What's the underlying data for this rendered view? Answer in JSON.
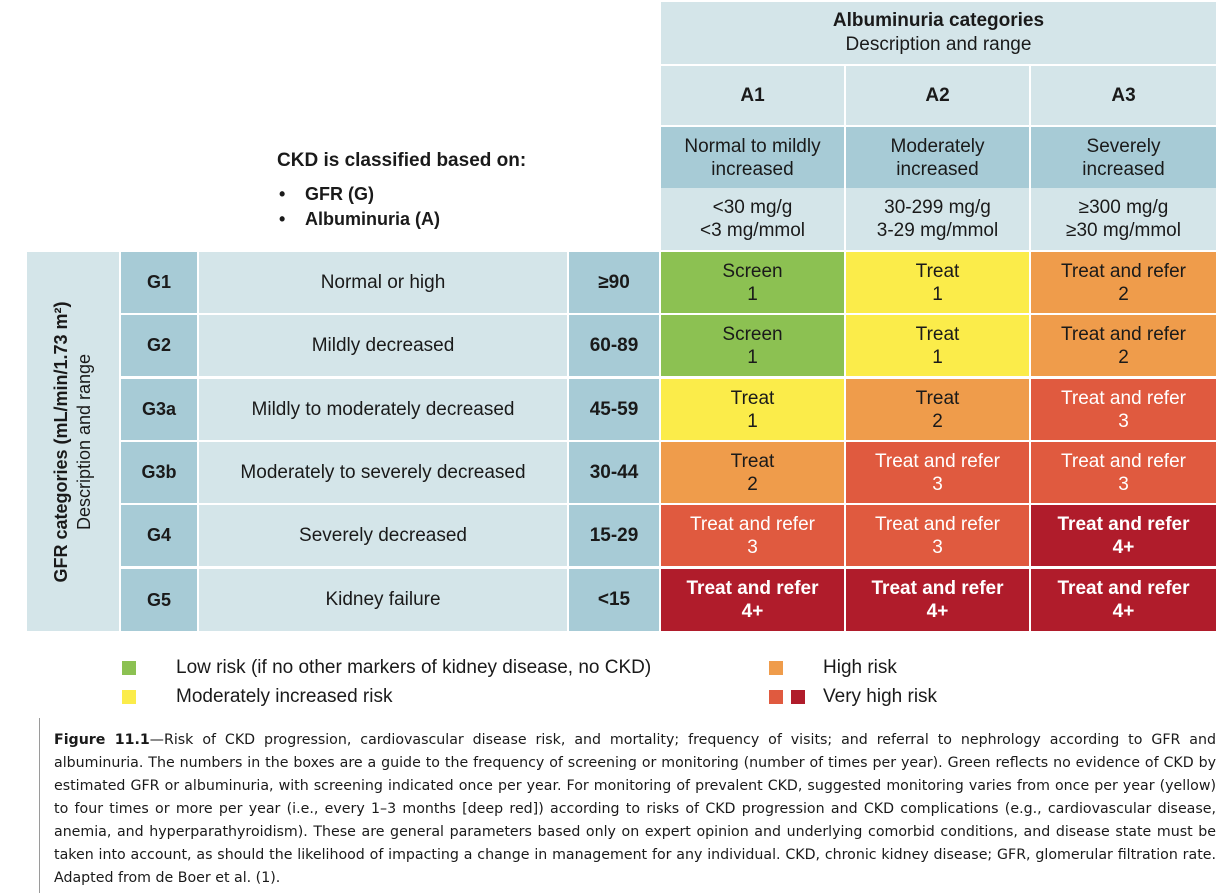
{
  "albuminuria": {
    "title": "Albuminuria categories",
    "subtitle": "Description and range",
    "columns": [
      {
        "code": "A1",
        "desc_l1": "Normal to mildly",
        "desc_l2": "increased",
        "range_l1": "<30 mg/g",
        "range_l2": "<3 mg/mmol"
      },
      {
        "code": "A2",
        "desc_l1": "Moderately",
        "desc_l2": "increased",
        "range_l1": "30-299 mg/g",
        "range_l2": "3-29 mg/mmol"
      },
      {
        "code": "A3",
        "desc_l1": "Severely",
        "desc_l2": "increased",
        "range_l1": "≥300 mg/g",
        "range_l2": "≥30 mg/mmol"
      }
    ]
  },
  "criteria": {
    "title": "CKD is classified based on:",
    "items": [
      "GFR (G)",
      "Albuminuria (A)"
    ]
  },
  "gfr": {
    "title": "GFR categories (mL/min/1.73 m²)",
    "subtitle": "Description and range",
    "rows": [
      {
        "code": "G1",
        "desc": "Normal or high",
        "range": "≥90"
      },
      {
        "code": "G2",
        "desc": "Mildly decreased",
        "range": "60-89"
      },
      {
        "code": "G3a",
        "desc": "Mildly to moderately decreased",
        "range": "45-59"
      },
      {
        "code": "G3b",
        "desc": "Moderately to severely decreased",
        "range": "30-44"
      },
      {
        "code": "G4",
        "desc": "Severely decreased",
        "range": "15-29"
      },
      {
        "code": "G5",
        "desc": "Kidney failure",
        "range": "<15"
      }
    ]
  },
  "colors": {
    "green": "#8cc152",
    "yellow": "#fbec4a",
    "orange": "#ef9c4b",
    "red": "#e05a3f",
    "deep_red": "#b01c2b",
    "light_blue": "#d4e5e9",
    "mid_blue": "#a7cbd6"
  },
  "grid": [
    [
      {
        "action": "Screen",
        "freq": "1",
        "color": "green"
      },
      {
        "action": "Treat",
        "freq": "1",
        "color": "yellow"
      },
      {
        "action": "Treat and refer",
        "freq": "2",
        "color": "orange"
      }
    ],
    [
      {
        "action": "Screen",
        "freq": "1",
        "color": "green"
      },
      {
        "action": "Treat",
        "freq": "1",
        "color": "yellow"
      },
      {
        "action": "Treat and refer",
        "freq": "2",
        "color": "orange"
      }
    ],
    [
      {
        "action": "Treat",
        "freq": "1",
        "color": "yellow"
      },
      {
        "action": "Treat",
        "freq": "2",
        "color": "orange"
      },
      {
        "action": "Treat and refer",
        "freq": "3",
        "color": "red"
      }
    ],
    [
      {
        "action": "Treat",
        "freq": "2",
        "color": "orange"
      },
      {
        "action": "Treat and refer",
        "freq": "3",
        "color": "red"
      },
      {
        "action": "Treat and refer",
        "freq": "3",
        "color": "red"
      }
    ],
    [
      {
        "action": "Treat and refer",
        "freq": "3",
        "color": "red"
      },
      {
        "action": "Treat and refer",
        "freq": "3",
        "color": "red"
      },
      {
        "action": "Treat and refer",
        "freq": "4+",
        "color": "deep_red"
      }
    ],
    [
      {
        "action": "Treat and refer",
        "freq": "4+",
        "color": "deep_red"
      },
      {
        "action": "Treat and refer",
        "freq": "4+",
        "color": "deep_red"
      },
      {
        "action": "Treat and refer",
        "freq": "4+",
        "color": "deep_red"
      }
    ]
  ],
  "legend": {
    "low": "Low risk (if no other markers of kidney disease, no CKD)",
    "moderate": "Moderately increased risk",
    "high": "High risk",
    "very_high": "Very high risk"
  },
  "caption": {
    "label": "Figure 11.1",
    "text": "—Risk of CKD progression, cardiovascular disease risk, and mortality; frequency of visits; and referral to nephrology according to GFR and albuminuria. The numbers in the boxes are a guide to the frequency of screening or monitoring (number of times per year). Green reflects no evidence of CKD by estimated GFR or albuminuria, with screening indicated once per year. For monitoring of prevalent CKD, suggested monitoring varies from once per year (yellow) to four times or more per year (i.e., every 1–3 months [deep red]) according to risks of CKD progression and CKD complications (e.g., cardiovascular disease, anemia, and hyperparathyroidism). These are general parameters based only on expert opinion and underlying comorbid conditions, and disease state must be taken into account, as should the likelihood of impacting a change in management for any individual. CKD, chronic kidney disease; GFR, glomerular filtration rate. Adapted from de Boer et al. (1)."
  }
}
